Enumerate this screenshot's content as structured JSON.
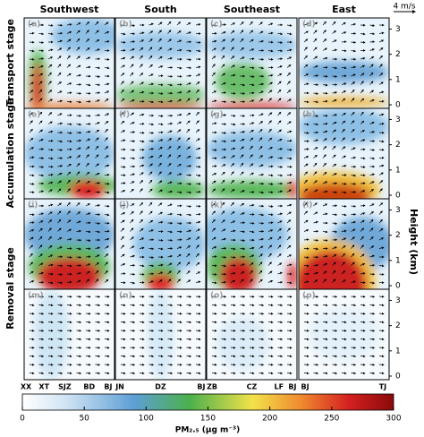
{
  "chart_data": {
    "type": "panel-grid",
    "vector_scale": "4 m/s",
    "columns": [
      "Southwest",
      "South",
      "Southeast",
      "East"
    ],
    "rows": [
      "Transport stage",
      "Accumulation stage",
      "Removal  stage"
    ],
    "panels": [
      "(a)",
      "(b)",
      "(c)",
      "(d)",
      "(e)",
      "(f)",
      "(g)",
      "(h)",
      "(i)",
      "(j)",
      "(k)",
      "(l)",
      "(m)",
      "(n)",
      "(o)",
      "(p)"
    ],
    "x_labels": [
      [
        "XX",
        "XT",
        "SJZ",
        "BD",
        "BJ"
      ],
      [
        "JN",
        "DZ",
        "BJ"
      ],
      [
        "ZB",
        "CZ",
        "LF",
        "BJ"
      ],
      [
        "BJ",
        "TJ"
      ]
    ],
    "y_axis_label": "Height (km)",
    "ylim": [
      0,
      3.3
    ],
    "yticks": [
      0,
      1,
      2,
      3
    ],
    "colorbar": {
      "label": "PM₂.₅ (μg m⁻³)",
      "lim": [
        0,
        300
      ],
      "ticks": [
        0,
        50,
        100,
        150,
        200,
        250,
        300
      ]
    }
  }
}
